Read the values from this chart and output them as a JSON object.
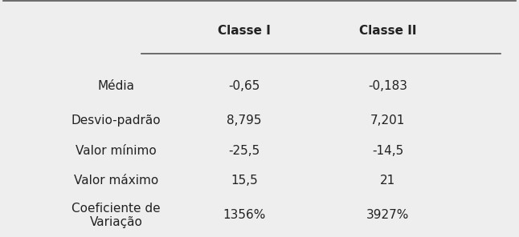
{
  "col_headers": [
    "Classe I",
    "Classe II"
  ],
  "row_labels": [
    "Média",
    "Desvio-padrão",
    "Valor mínimo",
    "Valor máximo",
    "Coeficiente de\nVariação"
  ],
  "values": [
    [
      "-0,65",
      "-0,183"
    ],
    [
      "8,795",
      "7,201"
    ],
    [
      "-25,5",
      "-14,5"
    ],
    [
      "15,5",
      "21"
    ],
    [
      "1356%",
      "3927%"
    ]
  ],
  "background_color": "#eeeeee",
  "text_color": "#222222",
  "header_fontsize": 11,
  "cell_fontsize": 11,
  "row_label_fontsize": 11
}
